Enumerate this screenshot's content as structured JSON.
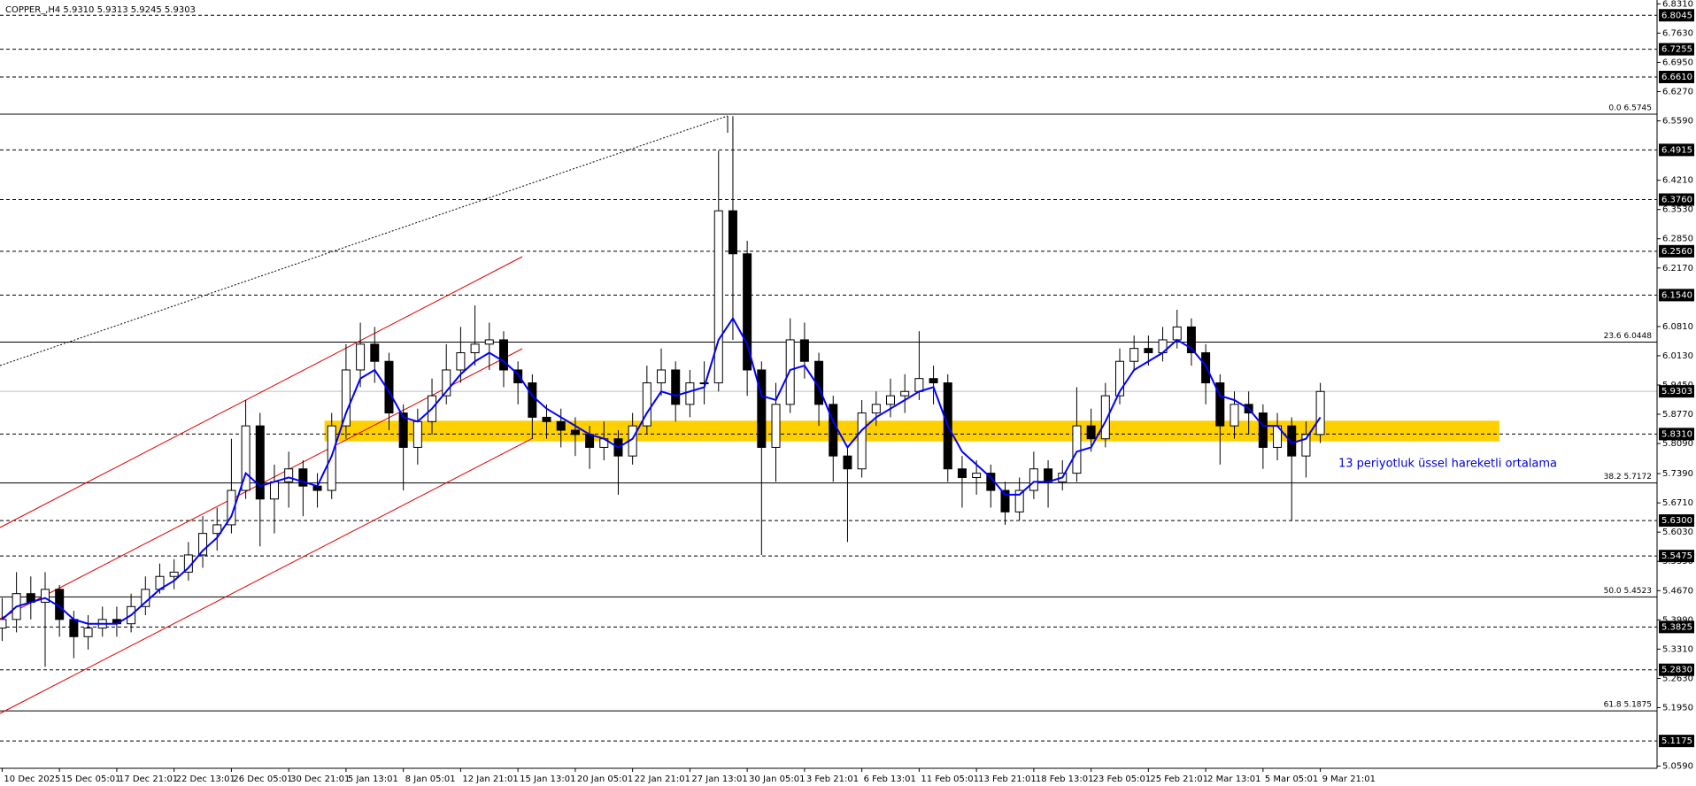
{
  "chart_data": {
    "type": "candlestick",
    "title": "COPPER_,H4  5.9310 5.9313 5.9245 5.9303",
    "candles": {
      "open": [
        5.38,
        5.4,
        5.46,
        5.44,
        5.47,
        5.4,
        5.36,
        5.38,
        5.4,
        5.39,
        5.43,
        5.47,
        5.5,
        5.51,
        5.55,
        5.6,
        5.62,
        5.7,
        5.85,
        5.68,
        5.72,
        5.75,
        5.71,
        5.7,
        5.85,
        5.98,
        6.04,
        6.0,
        5.88,
        5.8,
        5.86,
        5.92,
        5.98,
        6.02,
        6.04,
        6.05,
        5.98,
        5.95,
        5.87,
        5.86,
        5.84,
        5.83,
        5.8,
        5.82,
        5.78,
        5.85,
        5.95,
        5.98,
        5.9,
        5.95,
        5.95,
        6.35,
        6.25,
        5.98,
        5.8,
        5.9,
        6.05,
        6.0,
        5.9,
        5.78,
        5.75,
        5.88,
        5.9,
        5.92,
        5.93,
        5.96,
        5.95,
        5.75,
        5.73,
        5.74,
        5.7,
        5.65,
        5.7,
        5.75,
        5.72,
        5.74,
        5.85,
        5.82,
        5.92,
        6.0,
        6.03,
        6.02,
        6.05,
        6.08,
        6.02,
        5.95,
        5.85,
        5.9,
        5.88,
        5.8,
        5.85,
        5.78,
        5.83
      ],
      "high": [
        5.45,
        5.51,
        5.5,
        5.51,
        5.48,
        5.42,
        5.41,
        5.43,
        5.43,
        5.46,
        5.5,
        5.53,
        5.54,
        5.58,
        5.64,
        5.66,
        5.82,
        5.91,
        5.88,
        5.76,
        5.79,
        5.77,
        5.74,
        5.88,
        6.04,
        6.09,
        6.08,
        6.02,
        5.9,
        5.89,
        5.96,
        6.04,
        6.08,
        6.13,
        6.09,
        6.07,
        6.0,
        5.97,
        5.9,
        5.89,
        5.87,
        5.85,
        5.86,
        5.84,
        5.88,
        5.99,
        6.03,
        6.0,
        5.98,
        6.0,
        6.49,
        6.57,
        6.28,
        6.0,
        5.95,
        6.1,
        6.09,
        6.02,
        5.92,
        5.8,
        5.91,
        5.93,
        5.96,
        5.97,
        6.07,
        5.99,
        5.97,
        5.78,
        5.77,
        5.76,
        5.72,
        5.73,
        5.79,
        5.77,
        5.77,
        5.94,
        5.89,
        5.95,
        6.03,
        6.06,
        6.06,
        6.08,
        6.12,
        6.1,
        6.04,
        5.97,
        5.93,
        5.93,
        5.9,
        5.88,
        5.87,
        5.86,
        5.95
      ],
      "low": [
        5.35,
        5.37,
        5.4,
        5.29,
        5.36,
        5.31,
        5.33,
        5.36,
        5.36,
        5.37,
        5.41,
        5.46,
        5.47,
        5.49,
        5.52,
        5.56,
        5.6,
        5.68,
        5.57,
        5.6,
        5.66,
        5.64,
        5.66,
        5.68,
        5.82,
        5.94,
        5.95,
        5.84,
        5.7,
        5.76,
        5.83,
        5.9,
        5.95,
        5.99,
        5.98,
        5.94,
        5.9,
        5.82,
        5.82,
        5.8,
        5.78,
        5.75,
        5.77,
        5.69,
        5.76,
        5.83,
        5.92,
        5.86,
        5.87,
        5.9,
        5.93,
        6.05,
        5.92,
        5.55,
        5.72,
        5.88,
        5.96,
        5.85,
        5.72,
        5.58,
        5.73,
        5.85,
        5.87,
        5.88,
        5.91,
        5.9,
        5.72,
        5.66,
        5.69,
        5.66,
        5.62,
        5.63,
        5.68,
        5.66,
        5.7,
        5.72,
        5.79,
        5.8,
        5.9,
        5.98,
        5.99,
        6.0,
        6.03,
        5.99,
        5.9,
        5.76,
        5.82,
        5.83,
        5.75,
        5.77,
        5.63,
        5.73,
        5.81
      ],
      "close": [
        5.4,
        5.46,
        5.44,
        5.47,
        5.4,
        5.36,
        5.38,
        5.4,
        5.39,
        5.43,
        5.47,
        5.5,
        5.51,
        5.55,
        5.6,
        5.62,
        5.7,
        5.85,
        5.68,
        5.72,
        5.75,
        5.71,
        5.7,
        5.85,
        5.98,
        6.04,
        6.0,
        5.88,
        5.8,
        5.86,
        5.92,
        5.98,
        6.02,
        6.04,
        6.05,
        5.98,
        5.95,
        5.87,
        5.86,
        5.84,
        5.83,
        5.8,
        5.82,
        5.78,
        5.85,
        5.95,
        5.98,
        5.9,
        5.95,
        5.95,
        6.35,
        6.25,
        5.98,
        5.8,
        5.9,
        6.05,
        6.0,
        5.9,
        5.78,
        5.75,
        5.88,
        5.9,
        5.92,
        5.93,
        5.96,
        5.95,
        5.75,
        5.73,
        5.74,
        5.7,
        5.65,
        5.7,
        5.75,
        5.72,
        5.74,
        5.85,
        5.82,
        5.92,
        6.0,
        6.03,
        6.02,
        6.05,
        6.08,
        6.02,
        5.95,
        5.85,
        5.9,
        5.88,
        5.8,
        5.85,
        5.78,
        5.83,
        5.93
      ]
    },
    "bull_color": "#ffffff",
    "bear_color": "#000000",
    "ema": {
      "color": "#0000ff",
      "values": [
        5.4,
        5.43,
        5.44,
        5.45,
        5.43,
        5.4,
        5.39,
        5.39,
        5.39,
        5.41,
        5.44,
        5.47,
        5.49,
        5.52,
        5.56,
        5.59,
        5.64,
        5.74,
        5.71,
        5.72,
        5.73,
        5.72,
        5.71,
        5.78,
        5.88,
        5.96,
        5.98,
        5.93,
        5.87,
        5.86,
        5.89,
        5.93,
        5.97,
        6.0,
        6.02,
        6.0,
        5.97,
        5.92,
        5.89,
        5.87,
        5.85,
        5.83,
        5.82,
        5.8,
        5.82,
        5.88,
        5.93,
        5.92,
        5.93,
        5.94,
        6.05,
        6.1,
        6.04,
        5.92,
        5.91,
        5.98,
        5.99,
        5.94,
        5.86,
        5.8,
        5.84,
        5.87,
        5.89,
        5.91,
        5.93,
        5.94,
        5.85,
        5.79,
        5.76,
        5.73,
        5.69,
        5.69,
        5.72,
        5.72,
        5.73,
        5.79,
        5.8,
        5.86,
        5.93,
        5.98,
        6.0,
        6.02,
        6.05,
        6.03,
        5.99,
        5.92,
        5.91,
        5.89,
        5.85,
        5.85,
        5.81,
        5.82,
        5.87
      ]
    },
    "annotations": [
      "13 periyotluk üssel hareketli ortalama"
    ],
    "zone": {
      "low": 5.814,
      "high": 5.862,
      "x": [
        22.5,
        104.5
      ],
      "color": "#ffd000"
    },
    "levels": [
      {
        "value": 6.8045,
        "label": "6.8045"
      },
      {
        "value": 6.7255,
        "label": "6.7255"
      },
      {
        "value": 6.661,
        "label": "6.6610"
      },
      {
        "value": 6.4915,
        "label": "6.4915"
      },
      {
        "value": 6.376,
        "label": "6.3760"
      },
      {
        "value": 6.256,
        "label": "6.2560"
      },
      {
        "value": 6.154,
        "label": "6.1540"
      },
      {
        "value": 5.831,
        "label": "5.8310"
      },
      {
        "value": 5.63,
        "label": "5.6300"
      },
      {
        "value": 5.5475,
        "label": "5.5475"
      },
      {
        "value": 5.3825,
        "label": "5.3825"
      },
      {
        "value": 5.283,
        "label": "5.2830"
      },
      {
        "value": 5.1175,
        "label": "5.1175"
      }
    ],
    "fib_levels": [
      {
        "value": 6.5745,
        "label": "0.0 6.5745"
      },
      {
        "value": 6.0448,
        "label": "23.6 6.0448"
      },
      {
        "value": 5.7172,
        "label": "38.2 5.7172"
      },
      {
        "value": 5.4523,
        "label": "50.0 5.4523"
      },
      {
        "value": 5.1875,
        "label": "61.8 5.1875"
      }
    ],
    "bid": {
      "value": 5.9303,
      "label": "5.9303"
    },
    "xlim": [
      -0.15,
      115.5
    ],
    "xticks": [
      {
        "value": 0,
        "label": "10 Dec 2025"
      },
      {
        "value": 4,
        "label": "15 Dec 05:01"
      },
      {
        "value": 8,
        "label": "17 Dec 21:01"
      },
      {
        "value": 12,
        "label": "22 Dec 13:01"
      },
      {
        "value": 16,
        "label": "26 Dec 05:01"
      },
      {
        "value": 20,
        "label": "30 Dec 21:01"
      },
      {
        "value": 24,
        "label": "5 Jan 13:01"
      },
      {
        "value": 28,
        "label": "8 Jan 05:01"
      },
      {
        "value": 32,
        "label": "12 Jan 21:01"
      },
      {
        "value": 36,
        "label": "15 Jan 13:01"
      },
      {
        "value": 40,
        "label": "20 Jan 05:01"
      },
      {
        "value": 44,
        "label": "22 Jan 21:01"
      },
      {
        "value": 48,
        "label": "27 Jan 13:01"
      },
      {
        "value": 52,
        "label": "30 Jan 05:01"
      },
      {
        "value": 56,
        "label": "3 Feb 21:01"
      },
      {
        "value": 60,
        "label": "6 Feb 13:01"
      },
      {
        "value": 64,
        "label": "11 Feb 05:01"
      },
      {
        "value": 68,
        "label": "13 Feb 21:01"
      },
      {
        "value": 72,
        "label": "18 Feb 13:01"
      },
      {
        "value": 76,
        "label": "23 Feb 05:01"
      },
      {
        "value": 80,
        "label": "25 Feb 21:01"
      },
      {
        "value": 84,
        "label": "2 Mar 13:01"
      },
      {
        "value": 88,
        "label": "5 Mar 05:01"
      },
      {
        "value": 92,
        "label": "9 Mar 21:01"
      }
    ],
    "ylim": [
      5.054,
      6.84
    ],
    "yticks": [
      {
        "value": 6.831,
        "label": "6.8310"
      },
      {
        "value": 6.763,
        "label": "6.7630"
      },
      {
        "value": 6.695,
        "label": "6.6950"
      },
      {
        "value": 6.627,
        "label": "6.6270"
      },
      {
        "value": 6.559,
        "label": "6.5590"
      },
      {
        "value": 6.421,
        "label": "6.4210"
      },
      {
        "value": 6.353,
        "label": "6.3530"
      },
      {
        "value": 6.285,
        "label": "6.2850"
      },
      {
        "value": 6.217,
        "label": "6.2170"
      },
      {
        "value": 6.081,
        "label": "6.0810"
      },
      {
        "value": 6.013,
        "label": "6.0130"
      },
      {
        "value": 5.945,
        "label": "5.9450"
      },
      {
        "value": 5.877,
        "label": "5.8770"
      },
      {
        "value": 5.809,
        "label": "5.8090"
      },
      {
        "value": 5.739,
        "label": "5.7390"
      },
      {
        "value": 5.671,
        "label": "5.6710"
      },
      {
        "value": 5.603,
        "label": "5.6030"
      },
      {
        "value": 5.535,
        "label": "5.5350"
      },
      {
        "value": 5.467,
        "label": "5.4670"
      },
      {
        "value": 5.399,
        "label": "5.3990"
      },
      {
        "value": 5.331,
        "label": "5.3310"
      },
      {
        "value": 5.263,
        "label": "5.2630"
      },
      {
        "value": 5.195,
        "label": "5.1950"
      },
      {
        "value": 5.059,
        "label": "5.0590"
      }
    ]
  }
}
